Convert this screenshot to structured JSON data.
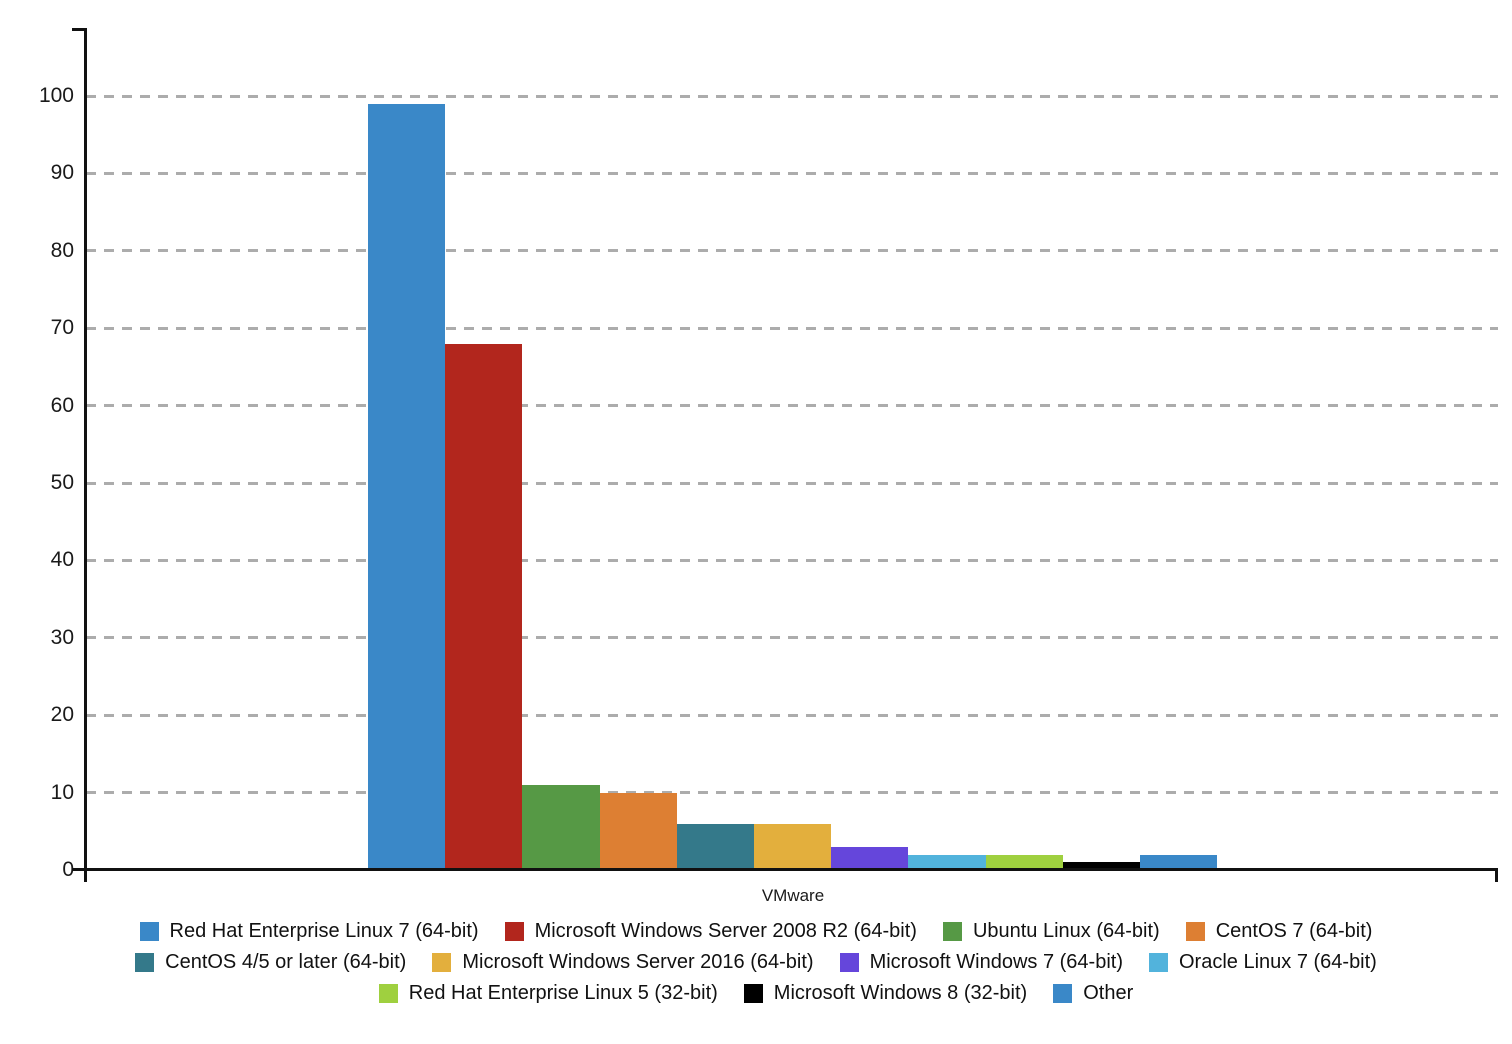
{
  "chart_data": {
    "type": "bar",
    "title": "",
    "xlabel": "VMware",
    "ylabel": "",
    "categories": [
      "VMware"
    ],
    "series": [
      {
        "name": "Red Hat Enterprise Linux 7 (64-bit)",
        "color": "#3a88c8",
        "values": [
          99
        ]
      },
      {
        "name": "Microsoft Windows Server 2008 R2 (64-bit)",
        "color": "#b2261d",
        "values": [
          68
        ]
      },
      {
        "name": "Ubuntu Linux (64-bit)",
        "color": "#569945",
        "values": [
          11
        ]
      },
      {
        "name": "CentOS 7 (64-bit)",
        "color": "#dd7f33",
        "values": [
          10
        ]
      },
      {
        "name": "CentOS 4/5 or later (64-bit)",
        "color": "#34798a",
        "values": [
          6
        ]
      },
      {
        "name": "Microsoft Windows Server 2016 (64-bit)",
        "color": "#e3af3d",
        "values": [
          6
        ]
      },
      {
        "name": "Microsoft Windows 7 (64-bit)",
        "color": "#6546db",
        "values": [
          3
        ]
      },
      {
        "name": "Oracle Linux 7 (64-bit)",
        "color": "#52b3dc",
        "values": [
          2
        ]
      },
      {
        "name": "Red Hat Enterprise Linux 5 (32-bit)",
        "color": "#9fd03f",
        "values": [
          2
        ]
      },
      {
        "name": "Microsoft Windows 8 (32-bit)",
        "color": "#000000",
        "values": [
          1
        ]
      },
      {
        "name": "Other",
        "color": "#3a88c8",
        "values": [
          2
        ]
      }
    ],
    "ylim": [
      0,
      108
    ],
    "yticks": [
      0,
      10,
      20,
      30,
      40,
      50,
      60,
      70,
      80,
      90,
      100
    ],
    "grid": "horizontal-dashed",
    "grid_color": "#acacac",
    "axis_color": "#111111",
    "legend_position": "bottom",
    "legend_rows": [
      [
        0,
        1,
        2,
        3
      ],
      [
        4,
        5,
        6,
        7
      ],
      [
        8,
        9,
        10
      ]
    ]
  }
}
